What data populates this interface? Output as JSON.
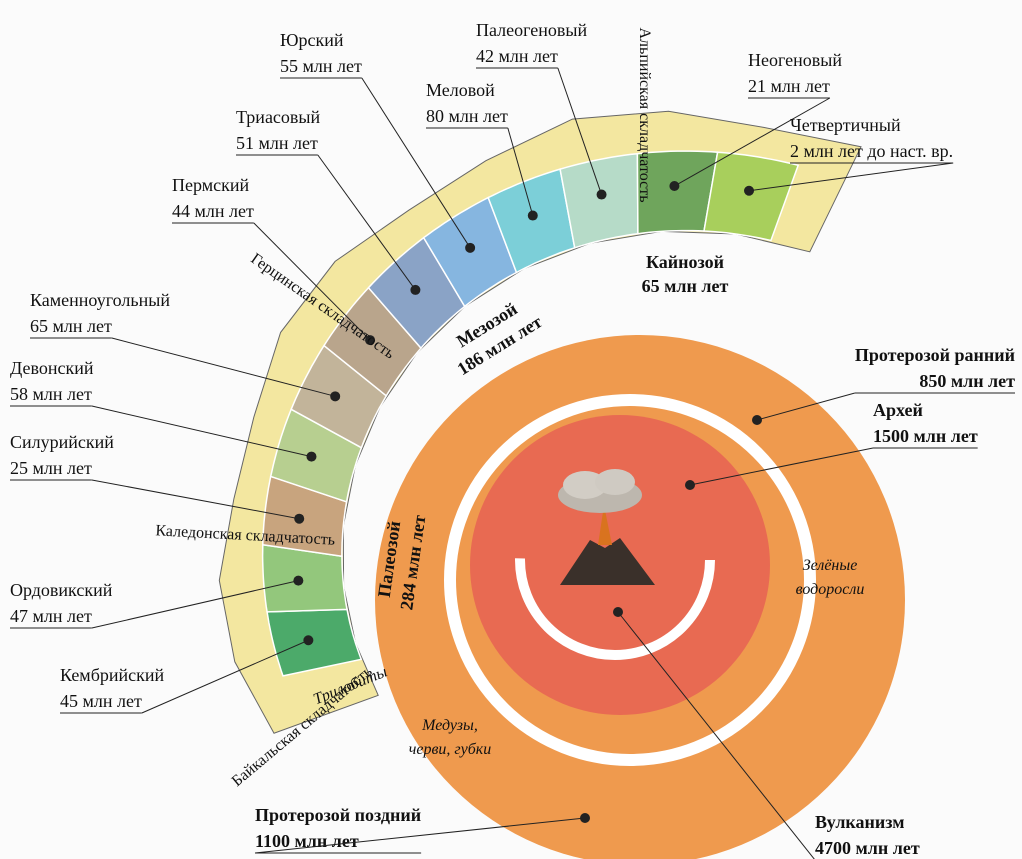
{
  "periods": [
    {
      "name": "Кембрийский",
      "duration": "45 млн лет"
    },
    {
      "name": "Ордовикский",
      "duration": "47 млн лет"
    },
    {
      "name": "Силурийский",
      "duration": "25 млн лет"
    },
    {
      "name": "Девонский",
      "duration": "58 млн лет"
    },
    {
      "name": "Каменноугольный",
      "duration": "65 млн лет"
    },
    {
      "name": "Пермский",
      "duration": "44 млн лет"
    },
    {
      "name": "Триасовый",
      "duration": "51 млн лет"
    },
    {
      "name": "Юрский",
      "duration": "55 млн лет"
    },
    {
      "name": "Меловой",
      "duration": "80 млн лет"
    },
    {
      "name": "Палеогеновый",
      "duration": "42 млн лет"
    },
    {
      "name": "Неогеновый",
      "duration": "21 млн лет"
    },
    {
      "name": "Четвертичный",
      "duration": "2 млн лет до наст. вр."
    }
  ],
  "eons": [
    {
      "name": "Протерозой ранний",
      "duration": "850 млн лет"
    },
    {
      "name": "Архей",
      "duration": "1500 млн лет"
    },
    {
      "name": "Протерозой поздний",
      "duration": "1100 млн лет"
    },
    {
      "name": "Вулканизм",
      "duration": "4700 млн лет"
    }
  ],
  "eras": [
    {
      "name": "Палеозой",
      "duration": "284 млн лет"
    },
    {
      "name": "Мезозой",
      "duration": "186 млн лет"
    },
    {
      "name": "Кайнозой",
      "duration": "65 млн лет"
    }
  ],
  "foldings": [
    "Байкальская складчатость",
    "Каледонская складчатость",
    "Герцинская складчатость",
    "Альпийская складчатость"
  ],
  "notes": [
    {
      "lines": [
        "Зелёные",
        "водоросли"
      ]
    },
    {
      "lines": [
        "Медузы,",
        "черви, губки"
      ]
    },
    {
      "lines": [
        "Трилобиты"
      ]
    }
  ]
}
